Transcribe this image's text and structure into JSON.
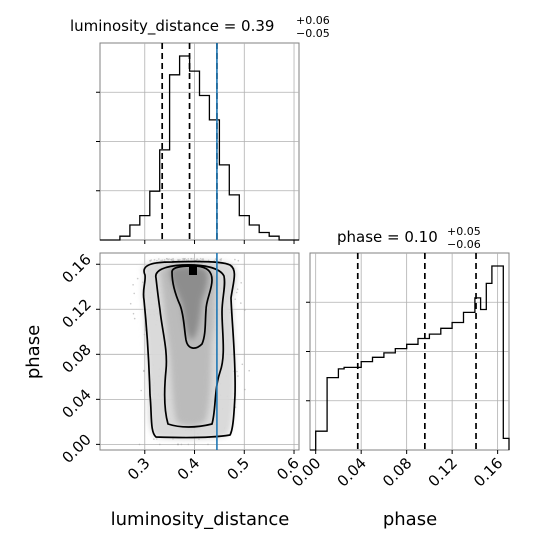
{
  "chart_data": {
    "type": "corner",
    "parameters": [
      "luminosity_distance",
      "phase"
    ],
    "axis_labels": {
      "x_bottom_left": "luminosity_distance",
      "x_bottom_right": "phase",
      "y_left": "phase"
    },
    "titles": {
      "luminosity_distance": {
        "main": "luminosity_distance = 0.39",
        "sup": "+0.06",
        "sub": "−0.05"
      },
      "phase": {
        "main": "phase = 0.10",
        "sup": "+0.05",
        "sub": "−0.06"
      }
    },
    "grid": true,
    "injection_color": "#1f77b4",
    "injection": {
      "luminosity_distance": 0.445,
      "phase": null
    },
    "luminosity_distance": {
      "xlim": [
        0.21,
        0.61
      ],
      "ticks": [
        "0.3",
        "0.4",
        "0.5",
        "0.6"
      ],
      "tick_values": [
        0.3,
        0.4,
        0.5,
        0.6
      ],
      "quantiles": [
        0.335,
        0.39,
        0.445
      ],
      "hist_bin_edges": [
        0.21,
        0.23,
        0.25,
        0.27,
        0.29,
        0.31,
        0.33,
        0.35,
        0.37,
        0.39,
        0.41,
        0.43,
        0.45,
        0.47,
        0.49,
        0.51,
        0.53,
        0.55,
        0.57,
        0.59,
        0.61
      ],
      "hist_counts": [
        0,
        0,
        2,
        8,
        13,
        26,
        48,
        88,
        98,
        90,
        77,
        64,
        40,
        24,
        13,
        8,
        4,
        2,
        0,
        0
      ]
    },
    "phase": {
      "xlim": [
        -0.005,
        0.17
      ],
      "ylim": [
        -0.005,
        0.17
      ],
      "ticks": [
        "0.00",
        "0.04",
        "0.08",
        "0.12",
        "0.16"
      ],
      "tick_values": [
        0.0,
        0.04,
        0.08,
        0.12,
        0.16
      ],
      "quantiles": [
        0.037,
        0.096,
        0.141
      ],
      "hist_bin_edges": [
        -0.005,
        0.0,
        0.005,
        0.01,
        0.015,
        0.02,
        0.025,
        0.03,
        0.035,
        0.04,
        0.045,
        0.05,
        0.055,
        0.06,
        0.065,
        0.07,
        0.075,
        0.08,
        0.085,
        0.09,
        0.095,
        0.1,
        0.105,
        0.11,
        0.115,
        0.12,
        0.125,
        0.13,
        0.135,
        0.14,
        0.145,
        0.15,
        0.155,
        0.16,
        0.165,
        0.17
      ],
      "hist_counts": [
        0,
        13,
        13,
        50,
        50,
        56,
        57,
        57,
        57,
        61,
        61,
        64,
        64,
        67,
        67,
        70,
        70,
        73,
        73,
        77,
        77,
        80,
        80,
        84,
        84,
        88,
        88,
        95,
        95,
        105,
        97,
        115,
        127,
        127,
        8
      ]
    },
    "joint_2d": {
      "x_param": "luminosity_distance",
      "y_param": "phase",
      "density_peak": [
        0.385,
        0.147
      ],
      "contour_levels": [
        "39.3%",
        "86.5%",
        "98.9%"
      ]
    }
  }
}
